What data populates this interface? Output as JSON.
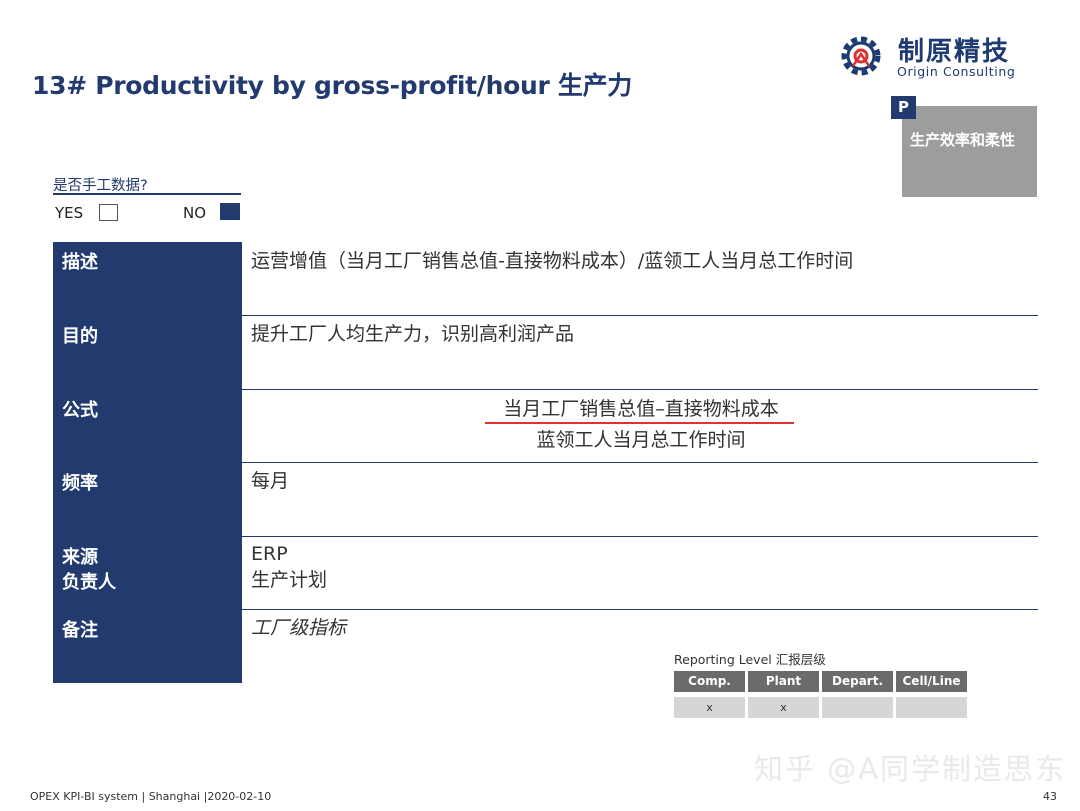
{
  "header": {
    "title": "13# Productivity by gross-profit/hour 生产力"
  },
  "logo": {
    "name_cn": "制原精技",
    "name_en": "Origin Consulting"
  },
  "category": {
    "letter": "P",
    "label": "生产效率和柔性"
  },
  "manual_data": {
    "question": "是否手工数据?",
    "yes_label": "YES",
    "no_label": "NO",
    "selected": "NO"
  },
  "table": {
    "rows": [
      {
        "label": "描述",
        "value": "运营增值（当月工厂销售总值-直接物料成本）/蓝领工人当月总工作时间"
      },
      {
        "label": "目的",
        "value": "提升工厂人均生产力，识别高利润产品"
      },
      {
        "label": "公式",
        "numerator": "当月工厂销售总值–直接物料成本",
        "denominator": "蓝领工人当月总工作时间"
      },
      {
        "label": "频率",
        "value": "每月"
      },
      {
        "label_line1": "来源",
        "label_line2": "负责人",
        "value_line1": "ERP",
        "value_line2": "生产计划"
      },
      {
        "label": "备注",
        "value": "工厂级指标"
      }
    ]
  },
  "reporting_level": {
    "title": "Reporting Level 汇报层级",
    "headers": [
      "Comp.",
      "Plant",
      "Depart.",
      "Cell/Line"
    ],
    "cells": [
      "x",
      "x",
      "",
      ""
    ]
  },
  "footer": {
    "left": "OPEX KPI-BI system |  Shanghai |2020-02-10",
    "page": "43"
  },
  "watermark": "知乎 @A同学制造思东"
}
